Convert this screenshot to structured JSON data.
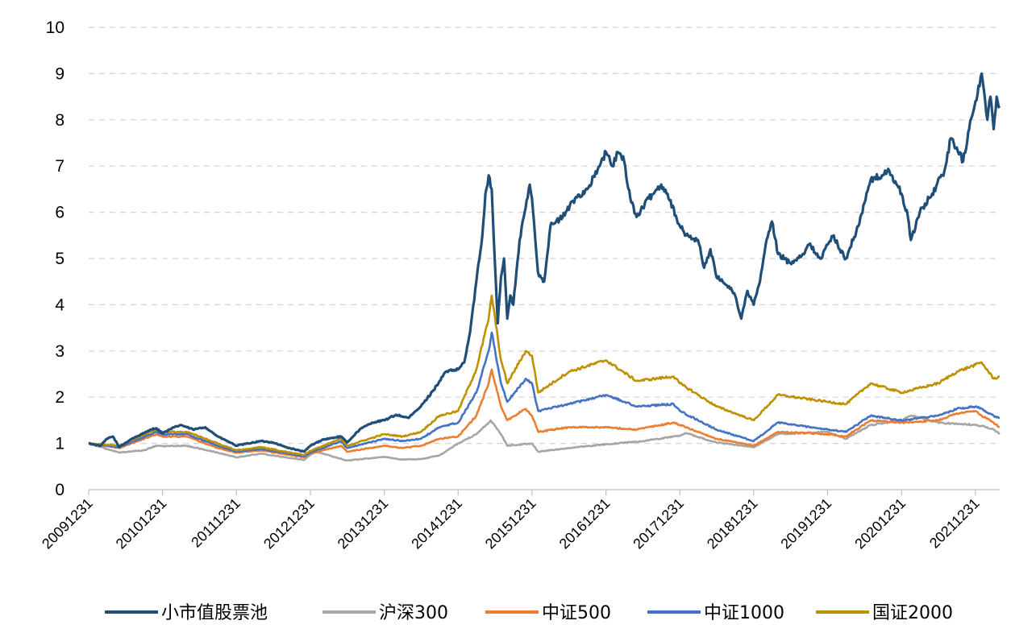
{
  "chart_data": {
    "type": "line",
    "title": "",
    "xlabel": "",
    "ylabel": "",
    "ylim": [
      0,
      10
    ],
    "yticks": [
      0,
      1,
      2,
      3,
      4,
      5,
      6,
      7,
      8,
      9,
      10
    ],
    "grid": "horizontal dashed",
    "legend_position": "bottom",
    "x_labels": [
      "20091231",
      "20101231",
      "20111231",
      "20121231",
      "20131231",
      "20141231",
      "20151231",
      "20161231",
      "20171231",
      "20181231",
      "20191231",
      "20201231",
      "20211231"
    ],
    "x_end": "20220430",
    "series": [
      {
        "name": "小市值股票池",
        "color": "#1f4e79",
        "points": [
          [
            "20091231",
            1.0
          ],
          [
            "20100228",
            0.95
          ],
          [
            "20100331",
            1.1
          ],
          [
            "20100430",
            1.15
          ],
          [
            "20100531",
            0.92
          ],
          [
            "20100731",
            1.1
          ],
          [
            "20100930",
            1.22
          ],
          [
            "20101031",
            1.3
          ],
          [
            "20101130",
            1.33
          ],
          [
            "20101231",
            1.22
          ],
          [
            "20110228",
            1.35
          ],
          [
            "20110331",
            1.4
          ],
          [
            "20110531",
            1.3
          ],
          [
            "20110731",
            1.35
          ],
          [
            "20110930",
            1.15
          ],
          [
            "20111130",
            1.02
          ],
          [
            "20111231",
            0.95
          ],
          [
            "20120228",
            1.0
          ],
          [
            "20120430",
            1.05
          ],
          [
            "20120630",
            1.02
          ],
          [
            "20120831",
            0.92
          ],
          [
            "20121130",
            0.82
          ],
          [
            "20121231",
            0.95
          ],
          [
            "20130228",
            1.08
          ],
          [
            "20130531",
            1.15
          ],
          [
            "20130630",
            1.02
          ],
          [
            "20130831",
            1.3
          ],
          [
            "20131031",
            1.45
          ],
          [
            "20131231",
            1.5
          ],
          [
            "20140228",
            1.62
          ],
          [
            "20140430",
            1.55
          ],
          [
            "20140630",
            1.8
          ],
          [
            "20140831",
            2.15
          ],
          [
            "20141031",
            2.55
          ],
          [
            "20141231",
            2.6
          ],
          [
            "20150130",
            2.75
          ],
          [
            "20150228",
            3.4
          ],
          [
            "20150331",
            4.5
          ],
          [
            "20150430",
            5.5
          ],
          [
            "20150515",
            6.4
          ],
          [
            "20150531",
            6.8
          ],
          [
            "20150615",
            6.5
          ],
          [
            "20150630",
            5.0
          ],
          [
            "20150715",
            3.6
          ],
          [
            "20150731",
            4.6
          ],
          [
            "20150815",
            5.0
          ],
          [
            "20150831",
            3.7
          ],
          [
            "20150915",
            4.2
          ],
          [
            "20150930",
            4.0
          ],
          [
            "20151031",
            5.4
          ],
          [
            "20151130",
            6.1
          ],
          [
            "20151220",
            6.6
          ],
          [
            "20151231",
            6.3
          ],
          [
            "20160130",
            4.7
          ],
          [
            "20160229",
            4.5
          ],
          [
            "20160331",
            5.7
          ],
          [
            "20160531",
            5.9
          ],
          [
            "20160731",
            6.3
          ],
          [
            "20160930",
            6.5
          ],
          [
            "20161130",
            7.0
          ],
          [
            "20161231",
            7.3
          ],
          [
            "20170131",
            7.0
          ],
          [
            "20170228",
            7.3
          ],
          [
            "20170331",
            7.1
          ],
          [
            "20170430",
            6.3
          ],
          [
            "20170531",
            5.9
          ],
          [
            "20170731",
            6.3
          ],
          [
            "20170930",
            6.6
          ],
          [
            "20171031",
            6.4
          ],
          [
            "20171231",
            5.7
          ],
          [
            "20180131",
            5.5
          ],
          [
            "20180331",
            5.4
          ],
          [
            "20180430",
            4.8
          ],
          [
            "20180531",
            5.2
          ],
          [
            "20180630",
            4.6
          ],
          [
            "20180831",
            4.4
          ],
          [
            "20180930",
            4.2
          ],
          [
            "20181031",
            3.7
          ],
          [
            "20181130",
            4.3
          ],
          [
            "20181231",
            4.0
          ],
          [
            "20190131",
            4.5
          ],
          [
            "20190228",
            5.3
          ],
          [
            "20190331",
            5.8
          ],
          [
            "20190430",
            5.1
          ],
          [
            "20190630",
            4.9
          ],
          [
            "20190831",
            5.1
          ],
          [
            "20190930",
            5.3
          ],
          [
            "20191130",
            5.0
          ],
          [
            "20191231",
            5.3
          ],
          [
            "20200131",
            5.5
          ],
          [
            "20200229",
            5.2
          ],
          [
            "20200331",
            5.0
          ],
          [
            "20200531",
            5.7
          ],
          [
            "20200731",
            6.7
          ],
          [
            "20200930",
            6.8
          ],
          [
            "20201031",
            6.9
          ],
          [
            "20201231",
            6.4
          ],
          [
            "20210131",
            5.9
          ],
          [
            "20210215",
            5.4
          ],
          [
            "20210331",
            6.0
          ],
          [
            "20210531",
            6.4
          ],
          [
            "20210731",
            6.9
          ],
          [
            "20210831",
            7.6
          ],
          [
            "20210930",
            7.4
          ],
          [
            "20211031",
            7.1
          ],
          [
            "20211130",
            7.8
          ],
          [
            "20211231",
            8.4
          ],
          [
            "20220131",
            9.0
          ],
          [
            "20220228",
            8.0
          ],
          [
            "20220315",
            8.5
          ],
          [
            "20220331",
            7.8
          ],
          [
            "20220415",
            8.5
          ],
          [
            "20220430",
            8.3
          ]
        ]
      },
      {
        "name": "沪深300",
        "color": "#a6a6a6",
        "points": [
          [
            "20091231",
            1.0
          ],
          [
            "20100531",
            0.8
          ],
          [
            "20100930",
            0.85
          ],
          [
            "20101130",
            0.95
          ],
          [
            "20101231",
            0.94
          ],
          [
            "20110430",
            0.95
          ],
          [
            "20110930",
            0.8
          ],
          [
            "20111231",
            0.7
          ],
          [
            "20120430",
            0.78
          ],
          [
            "20120930",
            0.68
          ],
          [
            "20121130",
            0.64
          ],
          [
            "20121231",
            0.76
          ],
          [
            "20130131",
            0.82
          ],
          [
            "20130630",
            0.63
          ],
          [
            "20131231",
            0.71
          ],
          [
            "20140331",
            0.65
          ],
          [
            "20140630",
            0.66
          ],
          [
            "20140930",
            0.74
          ],
          [
            "20141231",
            1.0
          ],
          [
            "20150331",
            1.2
          ],
          [
            "20150531",
            1.45
          ],
          [
            "20150610",
            1.5
          ],
          [
            "20150731",
            1.2
          ],
          [
            "20150831",
            0.95
          ],
          [
            "20151231",
            1.0
          ],
          [
            "20160131",
            0.82
          ],
          [
            "20160630",
            0.9
          ],
          [
            "20161231",
            0.98
          ],
          [
            "20170630",
            1.05
          ],
          [
            "20171231",
            1.17
          ],
          [
            "20180131",
            1.22
          ],
          [
            "20180630",
            1.02
          ],
          [
            "20181231",
            0.92
          ],
          [
            "20190430",
            1.2
          ],
          [
            "20191231",
            1.25
          ],
          [
            "20200331",
            1.1
          ],
          [
            "20200731",
            1.4
          ],
          [
            "20201231",
            1.5
          ],
          [
            "20210215",
            1.6
          ],
          [
            "20210630",
            1.45
          ],
          [
            "20211231",
            1.4
          ],
          [
            "20220131",
            1.38
          ],
          [
            "20220331",
            1.3
          ],
          [
            "20220430",
            1.2
          ]
        ]
      },
      {
        "name": "中证500",
        "color": "#ed7d31",
        "points": [
          [
            "20091231",
            1.0
          ],
          [
            "20100531",
            0.9
          ],
          [
            "20101130",
            1.2
          ],
          [
            "20101231",
            1.15
          ],
          [
            "20110430",
            1.15
          ],
          [
            "20110930",
            0.9
          ],
          [
            "20111231",
            0.8
          ],
          [
            "20120430",
            0.85
          ],
          [
            "20121130",
            0.7
          ],
          [
            "20121231",
            0.78
          ],
          [
            "20130531",
            0.95
          ],
          [
            "20130630",
            0.82
          ],
          [
            "20131231",
            0.95
          ],
          [
            "20140331",
            0.9
          ],
          [
            "20140630",
            0.95
          ],
          [
            "20140930",
            1.1
          ],
          [
            "20141231",
            1.15
          ],
          [
            "20150331",
            1.6
          ],
          [
            "20150531",
            2.3
          ],
          [
            "20150615",
            2.6
          ],
          [
            "20150731",
            1.8
          ],
          [
            "20150831",
            1.5
          ],
          [
            "20151130",
            1.75
          ],
          [
            "20151231",
            1.6
          ],
          [
            "20160131",
            1.25
          ],
          [
            "20160630",
            1.35
          ],
          [
            "20161231",
            1.35
          ],
          [
            "20170531",
            1.3
          ],
          [
            "20171130",
            1.45
          ],
          [
            "20171231",
            1.4
          ],
          [
            "20180630",
            1.1
          ],
          [
            "20181231",
            0.95
          ],
          [
            "20190430",
            1.25
          ],
          [
            "20191231",
            1.2
          ],
          [
            "20200331",
            1.15
          ],
          [
            "20200731",
            1.5
          ],
          [
            "20201231",
            1.45
          ],
          [
            "20210630",
            1.5
          ],
          [
            "20210930",
            1.65
          ],
          [
            "20211231",
            1.7
          ],
          [
            "20220131",
            1.6
          ],
          [
            "20220331",
            1.45
          ],
          [
            "20220430",
            1.35
          ]
        ]
      },
      {
        "name": "中证1000",
        "color": "#4472c4",
        "points": [
          [
            "20091231",
            1.0
          ],
          [
            "20100531",
            0.92
          ],
          [
            "20101130",
            1.25
          ],
          [
            "20101231",
            1.2
          ],
          [
            "20110430",
            1.2
          ],
          [
            "20110930",
            0.95
          ],
          [
            "20111231",
            0.82
          ],
          [
            "20120430",
            0.88
          ],
          [
            "20121130",
            0.72
          ],
          [
            "20121231",
            0.8
          ],
          [
            "20130531",
            1.05
          ],
          [
            "20130630",
            0.9
          ],
          [
            "20131231",
            1.1
          ],
          [
            "20140331",
            1.05
          ],
          [
            "20140630",
            1.1
          ],
          [
            "20140930",
            1.35
          ],
          [
            "20141231",
            1.45
          ],
          [
            "20150331",
            2.1
          ],
          [
            "20150531",
            3.0
          ],
          [
            "20150615",
            3.4
          ],
          [
            "20150731",
            2.3
          ],
          [
            "20150831",
            1.9
          ],
          [
            "20151130",
            2.4
          ],
          [
            "20151231",
            2.3
          ],
          [
            "20160131",
            1.7
          ],
          [
            "20160630",
            1.85
          ],
          [
            "20161231",
            2.05
          ],
          [
            "20170531",
            1.8
          ],
          [
            "20171130",
            1.85
          ],
          [
            "20171231",
            1.7
          ],
          [
            "20180630",
            1.3
          ],
          [
            "20181231",
            1.05
          ],
          [
            "20190430",
            1.45
          ],
          [
            "20191231",
            1.3
          ],
          [
            "20200331",
            1.25
          ],
          [
            "20200731",
            1.6
          ],
          [
            "20201231",
            1.5
          ],
          [
            "20210630",
            1.6
          ],
          [
            "20210930",
            1.75
          ],
          [
            "20211231",
            1.8
          ],
          [
            "20220131",
            1.75
          ],
          [
            "20220331",
            1.6
          ],
          [
            "20220430",
            1.55
          ]
        ]
      },
      {
        "name": "国证2000",
        "color": "#bf9000",
        "points": [
          [
            "20091231",
            1.0
          ],
          [
            "20100531",
            0.95
          ],
          [
            "20101130",
            1.3
          ],
          [
            "20101231",
            1.25
          ],
          [
            "20110430",
            1.25
          ],
          [
            "20110930",
            1.0
          ],
          [
            "20111231",
            0.85
          ],
          [
            "20120430",
            0.92
          ],
          [
            "20121130",
            0.75
          ],
          [
            "20121231",
            0.84
          ],
          [
            "20130531",
            1.1
          ],
          [
            "20130630",
            0.95
          ],
          [
            "20131231",
            1.2
          ],
          [
            "20140331",
            1.15
          ],
          [
            "20140630",
            1.25
          ],
          [
            "20140930",
            1.6
          ],
          [
            "20141231",
            1.7
          ],
          [
            "20150331",
            2.6
          ],
          [
            "20150531",
            3.7
          ],
          [
            "20150615",
            4.2
          ],
          [
            "20150731",
            2.8
          ],
          [
            "20150831",
            2.3
          ],
          [
            "20151130",
            3.0
          ],
          [
            "20151231",
            2.9
          ],
          [
            "20160131",
            2.1
          ],
          [
            "20160630",
            2.55
          ],
          [
            "20161231",
            2.8
          ],
          [
            "20170531",
            2.35
          ],
          [
            "20171130",
            2.45
          ],
          [
            "20171231",
            2.3
          ],
          [
            "20180630",
            1.8
          ],
          [
            "20181231",
            1.5
          ],
          [
            "20190430",
            2.05
          ],
          [
            "20191231",
            1.9
          ],
          [
            "20200331",
            1.85
          ],
          [
            "20200731",
            2.3
          ],
          [
            "20201231",
            2.1
          ],
          [
            "20210630",
            2.3
          ],
          [
            "20210930",
            2.55
          ],
          [
            "20211231",
            2.7
          ],
          [
            "20220131",
            2.75
          ],
          [
            "20220331",
            2.4
          ],
          [
            "20220430",
            2.45
          ]
        ]
      }
    ]
  }
}
